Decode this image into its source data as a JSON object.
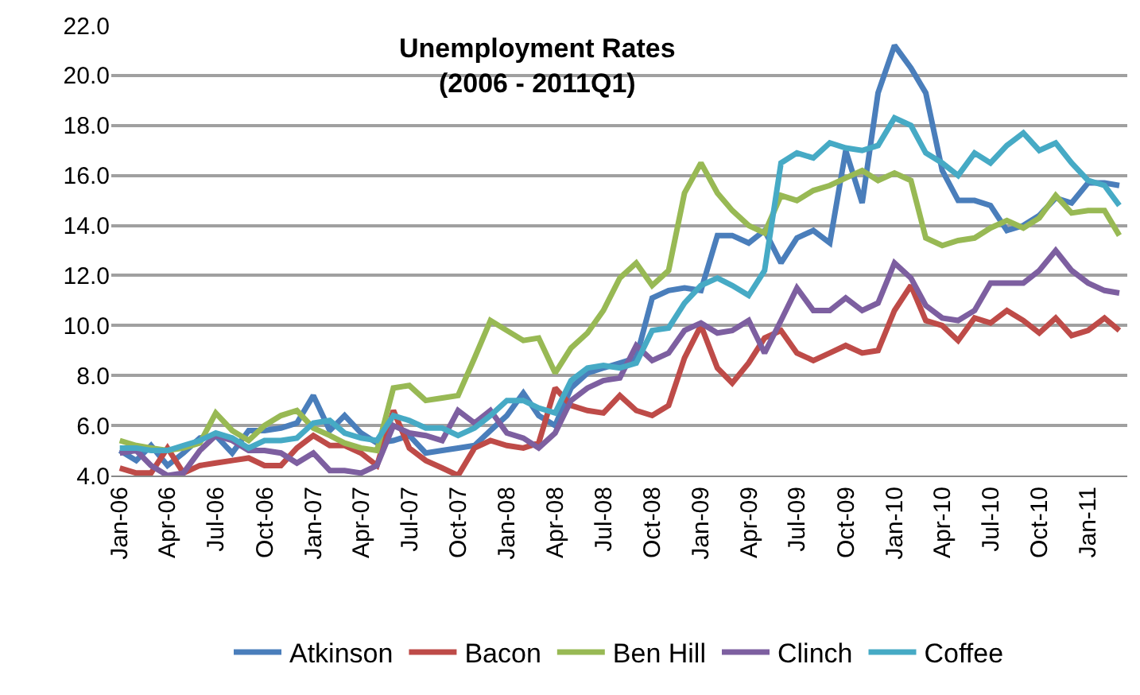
{
  "chart_data": {
    "type": "line",
    "title": "Unemployment Rates\n(2006 - 2011Q1)",
    "x": [
      "2006-01",
      "2006-02",
      "2006-03",
      "2006-04",
      "2006-05",
      "2006-06",
      "2006-07",
      "2006-08",
      "2006-09",
      "2006-10",
      "2006-11",
      "2006-12",
      "2007-01",
      "2007-02",
      "2007-03",
      "2007-04",
      "2007-05",
      "2007-06",
      "2007-07",
      "2007-08",
      "2007-09",
      "2007-10",
      "2007-11",
      "2007-12",
      "2008-01",
      "2008-02",
      "2008-03",
      "2008-04",
      "2008-05",
      "2008-06",
      "2008-07",
      "2008-08",
      "2008-09",
      "2008-10",
      "2008-11",
      "2008-12",
      "2009-01",
      "2009-02",
      "2009-03",
      "2009-04",
      "2009-05",
      "2009-06",
      "2009-07",
      "2009-08",
      "2009-09",
      "2009-10",
      "2009-11",
      "2009-12",
      "2010-01",
      "2010-02",
      "2010-03",
      "2010-04",
      "2010-05",
      "2010-06",
      "2010-07",
      "2010-08",
      "2010-09",
      "2010-10",
      "2010-11",
      "2010-12",
      "2011-01",
      "2011-02",
      "2011-03"
    ],
    "series": [
      {
        "name": "Atkinson",
        "color": "#4a7ebb",
        "values": [
          5.0,
          4.6,
          5.2,
          4.4,
          4.9,
          5.5,
          5.6,
          4.9,
          5.8,
          5.8,
          5.9,
          6.1,
          7.2,
          5.8,
          6.4,
          5.7,
          5.3,
          5.4,
          5.6,
          4.9,
          5.0,
          5.1,
          5.2,
          5.8,
          6.4,
          7.3,
          6.4,
          6.0,
          7.5,
          8.1,
          8.3,
          8.5,
          8.7,
          11.1,
          11.4,
          11.5,
          11.4,
          13.6,
          13.6,
          13.3,
          13.8,
          12.5,
          13.5,
          13.8,
          13.3,
          17.0,
          14.9,
          19.3,
          21.2,
          20.3,
          19.3,
          16.2,
          15.0,
          15.0,
          14.8,
          13.8,
          14.0,
          14.4,
          15.1,
          14.9,
          15.7,
          15.7,
          15.6
        ]
      },
      {
        "name": "Bacon",
        "color": "#be4b48",
        "values": [
          4.3,
          4.1,
          4.1,
          5.1,
          4.1,
          4.4,
          4.5,
          4.6,
          4.7,
          4.4,
          4.4,
          5.1,
          5.6,
          5.2,
          5.2,
          4.9,
          4.4,
          6.6,
          5.1,
          4.6,
          4.3,
          4.0,
          5.1,
          5.4,
          5.2,
          5.1,
          5.3,
          7.5,
          6.8,
          6.6,
          6.5,
          7.2,
          6.6,
          6.4,
          6.8,
          8.7,
          10.0,
          8.3,
          7.7,
          8.5,
          9.5,
          9.8,
          8.9,
          8.6,
          8.9,
          9.2,
          8.9,
          9.0,
          10.6,
          11.6,
          10.2,
          10.0,
          9.4,
          10.3,
          10.1,
          10.6,
          10.2,
          9.7,
          10.3,
          9.6,
          9.8,
          10.3,
          9.8
        ]
      },
      {
        "name": "Ben Hill",
        "color": "#98b954",
        "values": [
          5.4,
          5.2,
          5.1,
          5.0,
          5.1,
          5.3,
          6.5,
          5.8,
          5.4,
          6.0,
          6.4,
          6.6,
          5.9,
          5.6,
          5.3,
          5.1,
          5.0,
          7.5,
          7.6,
          7.0,
          7.1,
          7.2,
          8.7,
          10.2,
          9.8,
          9.4,
          9.5,
          8.1,
          9.1,
          9.7,
          10.6,
          11.9,
          12.5,
          11.6,
          12.2,
          15.3,
          16.5,
          15.3,
          14.6,
          14.0,
          13.7,
          15.2,
          15.0,
          15.4,
          15.6,
          15.9,
          16.2,
          15.8,
          16.1,
          15.8,
          13.5,
          13.2,
          13.4,
          13.5,
          13.9,
          14.2,
          13.9,
          14.3,
          15.2,
          14.5,
          14.6,
          14.6,
          13.6
        ]
      },
      {
        "name": "Clinch",
        "color": "#7d5fa0",
        "values": [
          4.9,
          5.0,
          4.4,
          4.0,
          4.1,
          5.0,
          5.6,
          5.4,
          5.0,
          5.0,
          4.9,
          4.5,
          4.9,
          4.2,
          4.2,
          4.1,
          4.4,
          6.0,
          5.7,
          5.6,
          5.4,
          6.6,
          6.1,
          6.6,
          5.7,
          5.5,
          5.1,
          5.7,
          7.0,
          7.5,
          7.8,
          7.9,
          9.2,
          8.6,
          8.9,
          9.8,
          10.1,
          9.7,
          9.8,
          10.2,
          8.9,
          10.2,
          11.5,
          10.6,
          10.6,
          11.1,
          10.6,
          10.9,
          12.5,
          11.9,
          10.8,
          10.3,
          10.2,
          10.6,
          11.7,
          11.7,
          11.7,
          12.2,
          13.0,
          12.2,
          11.7,
          11.4,
          11.3
        ]
      },
      {
        "name": "Coffee",
        "color": "#46aac5",
        "values": [
          5.1,
          5.1,
          5.0,
          5.0,
          5.2,
          5.4,
          5.7,
          5.5,
          5.1,
          5.4,
          5.4,
          5.5,
          6.1,
          6.2,
          5.7,
          5.5,
          5.4,
          6.4,
          6.2,
          5.9,
          5.9,
          5.6,
          5.9,
          6.4,
          7.0,
          7.0,
          6.7,
          6.5,
          7.8,
          8.3,
          8.4,
          8.3,
          8.5,
          9.8,
          9.9,
          10.9,
          11.6,
          11.9,
          11.6,
          11.2,
          12.2,
          16.5,
          16.9,
          16.7,
          17.3,
          17.1,
          17.0,
          17.2,
          18.3,
          18.0,
          16.9,
          16.5,
          16.0,
          16.9,
          16.5,
          17.2,
          17.7,
          17.0,
          17.3,
          16.5,
          15.8,
          15.6,
          14.8
        ]
      }
    ],
    "xlim": [
      "2005-12-16",
      "2011-03-16"
    ],
    "xticks": [
      {
        "value": "2006-01-01",
        "label": "Jan-06"
      },
      {
        "value": "2006-04-01",
        "label": "Apr-06"
      },
      {
        "value": "2006-07-01",
        "label": "Jul-06"
      },
      {
        "value": "2006-10-01",
        "label": "Oct-06"
      },
      {
        "value": "2007-01-01",
        "label": "Jan-07"
      },
      {
        "value": "2007-04-01",
        "label": "Apr-07"
      },
      {
        "value": "2007-07-01",
        "label": "Jul-07"
      },
      {
        "value": "2007-10-01",
        "label": "Oct-07"
      },
      {
        "value": "2008-01-01",
        "label": "Jan-08"
      },
      {
        "value": "2008-04-01",
        "label": "Apr-08"
      },
      {
        "value": "2008-07-01",
        "label": "Jul-08"
      },
      {
        "value": "2008-10-01",
        "label": "Oct-08"
      },
      {
        "value": "2009-01-01",
        "label": "Jan-09"
      },
      {
        "value": "2009-04-01",
        "label": "Apr-09"
      },
      {
        "value": "2009-07-01",
        "label": "Jul-09"
      },
      {
        "value": "2009-10-01",
        "label": "Oct-09"
      },
      {
        "value": "2010-01-01",
        "label": "Jan-10"
      },
      {
        "value": "2010-04-01",
        "label": "Apr-10"
      },
      {
        "value": "2010-07-01",
        "label": "Jul-10"
      },
      {
        "value": "2010-10-01",
        "label": "Oct-10"
      },
      {
        "value": "2011-01-01",
        "label": "Jan-11"
      }
    ],
    "ylim": [
      4,
      22
    ],
    "yticks": [
      {
        "value": 4,
        "label": "4.0"
      },
      {
        "value": 6,
        "label": "6.0"
      },
      {
        "value": 8,
        "label": "8.0"
      },
      {
        "value": 10,
        "label": "10.0"
      },
      {
        "value": 12,
        "label": "12.0"
      },
      {
        "value": 14,
        "label": "14.0"
      },
      {
        "value": 16,
        "label": "16.0"
      },
      {
        "value": 18,
        "label": "18.0"
      },
      {
        "value": 20,
        "label": "20.0"
      },
      {
        "value": 22,
        "label": "22.0"
      }
    ],
    "grid": "y",
    "legend": "bottom",
    "marker": "none",
    "line_style": "solid"
  }
}
